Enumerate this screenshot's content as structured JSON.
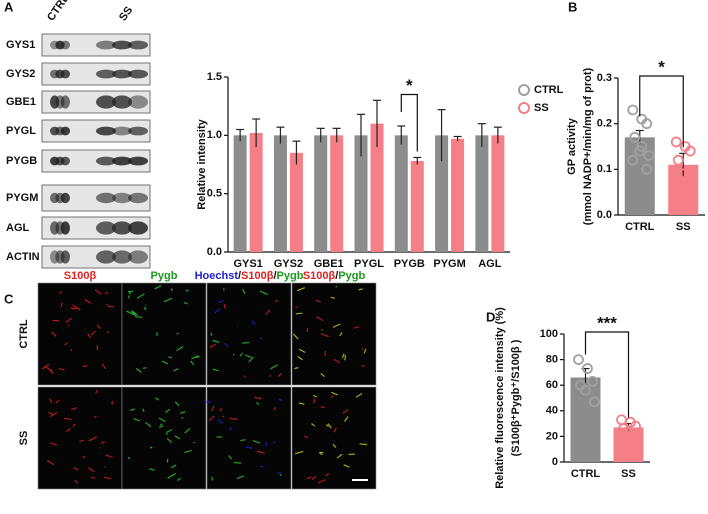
{
  "panels": [
    "A",
    "B",
    "C",
    "D"
  ],
  "blot": {
    "columns": [
      "CTRL",
      "SS"
    ],
    "rows": [
      "GYS1",
      "GYS2",
      "GBE1",
      "PYGL",
      "PYGB",
      "PYGM",
      "AGL",
      "ACTIN"
    ]
  },
  "micrograph": {
    "rows": [
      "CTRL",
      "SS"
    ],
    "columns": [
      [
        {
          "text": "S100β",
          "color": "#e02020"
        }
      ],
      [
        {
          "text": "Pygb",
          "color": "#1a9a1a"
        }
      ],
      [
        {
          "text": "Hoechst",
          "color": "#2020d0"
        },
        {
          "text": "/",
          "color": "#111111"
        },
        {
          "text": "S100β",
          "color": "#e02020"
        },
        {
          "text": "/",
          "color": "#111111"
        },
        {
          "text": "Pygb",
          "color": "#1a9a1a"
        }
      ],
      [
        {
          "text": "S100β",
          "color": "#e02020"
        },
        {
          "text": "/",
          "color": "#111111"
        },
        {
          "text": "Pygb",
          "color": "#1a9a1a"
        }
      ]
    ]
  },
  "chart_data": [
    {
      "type": "bar",
      "ylabel": [
        "Relative intensity"
      ],
      "categories": [
        "GYS1",
        "GYS2",
        "GBE1",
        "PYGL",
        "PYGB",
        "PYGM",
        "AGL"
      ],
      "series": [
        {
          "name": "CTRL",
          "color": "#8c8c8c",
          "values": [
            1.0,
            1.0,
            1.0,
            1.0,
            1.0,
            1.0,
            1.0
          ],
          "errors": [
            0.05,
            0.07,
            0.06,
            0.18,
            0.08,
            0.22,
            0.1
          ]
        },
        {
          "name": "SS",
          "color": "#f47f86",
          "values": [
            1.02,
            0.85,
            1.0,
            1.1,
            0.78,
            0.97,
            1.0
          ],
          "errors": [
            0.12,
            0.1,
            0.06,
            0.2,
            0.03,
            0.02,
            0.07
          ]
        }
      ],
      "ylim": [
        0,
        1.5
      ],
      "yticks": [
        {
          "value": 0,
          "label": "0.0"
        },
        {
          "value": 0.5,
          "label": "0.5"
        },
        {
          "value": 1,
          "label": "1.0"
        },
        {
          "value": 1.5,
          "label": "1.5"
        }
      ],
      "annotation": "*",
      "legend": "right"
    },
    {
      "type": "bar",
      "ylabel": [
        "GP activity",
        "(mmol NADP+/min/mg of prot)"
      ],
      "categories": [
        "CTRL",
        "SS"
      ],
      "colors": [
        "#8c8c8c",
        "#f47f86"
      ],
      "values": [
        0.17,
        0.11
      ],
      "errors": [
        0.015,
        0.025
      ],
      "points": [
        [
          0.23,
          0.21,
          0.2,
          0.17,
          0.14,
          0.13,
          0.12,
          0.15,
          0.1
        ],
        [
          0.16,
          0.15,
          0.14,
          0.12,
          0.09,
          0.06,
          0.03
        ]
      ],
      "ylim": [
        0,
        0.3
      ],
      "yticks": [
        {
          "value": 0,
          "label": "0.0"
        },
        0.1,
        0.2,
        0.3
      ],
      "annotation": "*"
    },
    {
      "type": "bar",
      "ylabel": [
        "Relative fluorescence intensity (%)",
        "(S100β⁺Pygb⁺/S100β )"
      ],
      "categories": [
        "CTRL",
        "SS"
      ],
      "colors": [
        "#8c8c8c",
        "#f47f86"
      ],
      "values": [
        66,
        27
      ],
      "errors": [
        7,
        3
      ],
      "points": [
        [
          80,
          73,
          63,
          60,
          56,
          47
        ],
        [
          33,
          31,
          28,
          26,
          24,
          22
        ]
      ],
      "ylim": [
        0,
        100
      ],
      "yticks": [
        0,
        20,
        40,
        60,
        80,
        100
      ],
      "annotation": "***"
    }
  ]
}
